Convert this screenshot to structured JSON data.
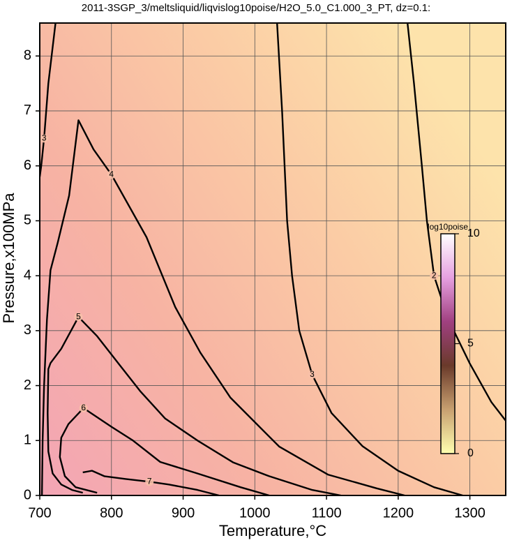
{
  "chart_data": {
    "type": "contour",
    "title": "2011-3SGP_3/meltsliquid/liqvislog10poise/H2O_5.0_C1.000_3_PT, dz=0.1:",
    "xlabel": "Temperature,°C",
    "ylabel": "Pressure,x100MPa",
    "xlim": [
      700,
      1350
    ],
    "ylim": [
      0,
      8.6
    ],
    "xticks": [
      700,
      800,
      900,
      1000,
      1100,
      1200,
      1300
    ],
    "yticks": [
      0,
      1,
      2,
      3,
      4,
      5,
      6,
      7,
      8
    ],
    "grid": true,
    "line_color": "#000000",
    "contours": [
      {
        "level": 2,
        "x": [
          1213,
          1222,
          1233,
          1240,
          1250,
          1270,
          1300,
          1330,
          1350
        ],
        "y": [
          8.6,
          7.5,
          6,
          5,
          4,
          3.2,
          2.4,
          1.7,
          1.36
        ]
      },
      {
        "level": 3,
        "x": [
          1031,
          1038,
          1045,
          1052,
          1062,
          1080,
          1107,
          1150,
          1200,
          1250,
          1290
        ],
        "y": [
          8.6,
          7,
          5,
          4,
          3,
          2.2,
          1.5,
          0.9,
          0.45,
          0.15,
          0
        ]
      },
      {
        "level": 3,
        "x": [
          722,
          712,
          706,
          702,
          700
        ],
        "y": [
          8.6,
          7.5,
          6.5,
          6,
          5.8
        ]
      },
      {
        "level": 4,
        "x": [
          703,
          704,
          706,
          710,
          715,
          725,
          741,
          754,
          775,
          800,
          849,
          889,
          924,
          966,
          1034,
          1102,
          1170,
          1209
        ],
        "y": [
          0,
          1,
          2,
          3.2,
          4.1,
          4.6,
          5.46,
          6.83,
          6.3,
          5.84,
          4.7,
          3.43,
          2.6,
          1.78,
          0.89,
          0.38,
          0.13,
          0
        ]
      },
      {
        "level": 5,
        "x": [
          760,
          745,
          730,
          718,
          712,
          711,
          712,
          715,
          730,
          754,
          780,
          810,
          840,
          875,
          920,
          970,
          1020,
          1080,
          1120
        ],
        "y": [
          0.05,
          0.1,
          0.2,
          0.4,
          0.8,
          1.5,
          2.3,
          2.41,
          2.67,
          3.25,
          2.9,
          2.4,
          1.9,
          1.4,
          1,
          0.6,
          0.35,
          0.1,
          0
        ]
      },
      {
        "level": 6,
        "x": [
          780,
          750,
          735,
          728,
          730,
          740,
          761,
          800,
          830,
          868,
          920,
          980,
          1020
        ],
        "y": [
          0.05,
          0.15,
          0.35,
          0.7,
          1.05,
          1.3,
          1.59,
          1.25,
          1,
          0.61,
          0.4,
          0.15,
          0
        ]
      },
      {
        "level": 7,
        "x": [
          760,
          773,
          790,
          820,
          853,
          880,
          920,
          950
        ],
        "y": [
          0.42,
          0.45,
          0.35,
          0.3,
          0.25,
          0.2,
          0.1,
          0
        ]
      }
    ],
    "colorbar": {
      "label": "log10poise",
      "clim": [
        0,
        10
      ],
      "ticks": [
        0,
        5,
        10
      ],
      "colors": [
        "#ffffb0",
        "#c8a070",
        "#6a3a2a",
        "#a04080",
        "#e6a0e0",
        "#ffffff"
      ]
    }
  }
}
